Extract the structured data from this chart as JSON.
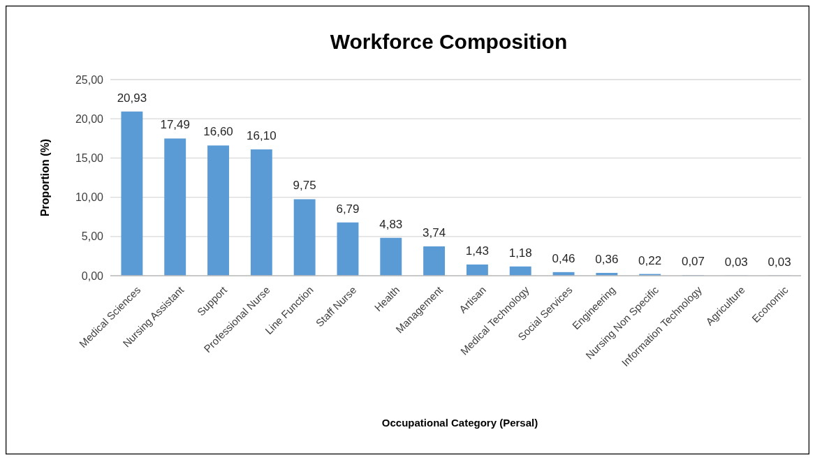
{
  "chart_data": {
    "type": "bar",
    "title": "Workforce Composition",
    "xlabel": "Occupational Category (Persal)",
    "ylabel": "Proportion (%)",
    "categories": [
      "Medical Sciences",
      "Nursing Assistant",
      "Support",
      "Professional Nurse",
      "Line Function",
      "Staff Nurse",
      "Health",
      "Management",
      "Artisan",
      "Medical Technology",
      "Social Services",
      "Engineering",
      "Nursing Non Specific",
      "Information Technology",
      "Agriculture",
      "Economic"
    ],
    "values": [
      20.93,
      17.49,
      16.6,
      16.1,
      9.75,
      6.79,
      4.83,
      3.74,
      1.43,
      1.18,
      0.46,
      0.36,
      0.22,
      0.07,
      0.03,
      0.03
    ],
    "value_labels": [
      "20,93",
      "17,49",
      "16,60",
      "16,10",
      "9,75",
      "6,79",
      "4,83",
      "3,74",
      "1,43",
      "1,18",
      "0,46",
      "0,36",
      "0,22",
      "0,07",
      "0,03",
      "0,03"
    ],
    "color": "#5b9bd5",
    "ylim": [
      0,
      25
    ],
    "yticks": [
      {
        "value": 0,
        "label": "0,00"
      },
      {
        "value": 5,
        "label": "5,00"
      },
      {
        "value": 10,
        "label": "10,00"
      },
      {
        "value": 15,
        "label": "15,00"
      },
      {
        "value": 20,
        "label": "20,00"
      },
      {
        "value": 25,
        "label": "25,00"
      }
    ],
    "grid": "y"
  }
}
